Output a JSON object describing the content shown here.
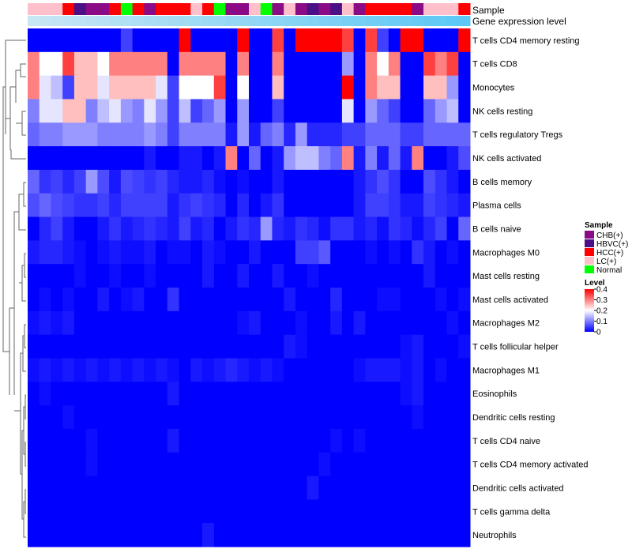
{
  "chart_data": {
    "type": "heatmap",
    "title": "",
    "annotation_rows": [
      {
        "label": "Sample"
      },
      {
        "label": "Gene expression level"
      }
    ],
    "sample_groups": [
      "LC(+)",
      "LC(+)",
      "LC(+)",
      "HCC(+)",
      "HBVC(+)",
      "CHB(+)",
      "CHB(+)",
      "HCC(+)",
      "Normal",
      "HCC(+)",
      "CHB(+)",
      "HCC(+)",
      "HCC(+)",
      "HCC(+)",
      "LC(+)",
      "HCC(+)",
      "Normal",
      "CHB(+)",
      "CHB(+)",
      "LC(+)",
      "Normal",
      "CHB(+)",
      "LC(+)",
      "CHB(+)",
      "HBVC(+)",
      "CHB(+)",
      "HBVC(+)",
      "LC(+)",
      "CHB(+)",
      "HCC(+)",
      "HCC(+)",
      "HCC(+)",
      "HCC(+)",
      "CHB(+)",
      "LC(+)",
      "LC(+)",
      "LC(+)",
      "HCC(+)"
    ],
    "rows": [
      "T cells CD4 memory resting",
      "T cells CD8",
      "Monocytes",
      "NK cells resting",
      "T cells regulatory  Tregs",
      "NK cells activated",
      "B cells memory",
      "Plasma cells",
      "B cells naive",
      "Macrophages M0",
      "Mast cells resting",
      "Mast cells activated",
      "Macrophages M2",
      "T cells follicular helper",
      "Macrophages M1",
      "Eosinophils",
      "Dendritic cells resting",
      "T cells CD4 naive",
      "T cells CD4 memory activated",
      "Dendritic cells activated",
      "T cells gamma delta",
      "Neutrophils"
    ],
    "values": [
      [
        0,
        0,
        0,
        0,
        0,
        0,
        0,
        0,
        0.05,
        0,
        0,
        0,
        0,
        0.4,
        0,
        0,
        0,
        0,
        0.4,
        0,
        0,
        0.35,
        0,
        0.4,
        0.4,
        0.4,
        0.4,
        0.35,
        0,
        0.35,
        0.05,
        0,
        0.4,
        0.4,
        0,
        0,
        0,
        0.4
      ],
      [
        0.3,
        0.2,
        0.2,
        0.35,
        0.25,
        0.25,
        0.2,
        0.3,
        0.3,
        0.3,
        0.3,
        0.3,
        0,
        0.3,
        0.3,
        0.3,
        0.3,
        0,
        0.3,
        0,
        0,
        0.3,
        0,
        0,
        0,
        0,
        0,
        0.12,
        0,
        0.3,
        0.2,
        0.3,
        0,
        0,
        0.35,
        0.3,
        0.35,
        0
      ],
      [
        0.3,
        0.18,
        0.15,
        0.05,
        0.25,
        0.25,
        0.18,
        0.25,
        0.25,
        0.25,
        0.25,
        0.18,
        0.05,
        0.2,
        0.2,
        0.2,
        0.35,
        0,
        0.2,
        0,
        0,
        0.25,
        0,
        0,
        0,
        0,
        0,
        0.4,
        0,
        0.3,
        0.25,
        0.25,
        0,
        0,
        0.25,
        0.25,
        0.12,
        0
      ],
      [
        0.1,
        0.18,
        0.18,
        0.25,
        0.25,
        0.1,
        0.15,
        0.18,
        0.12,
        0.1,
        0.18,
        0.12,
        0.05,
        0.15,
        0.05,
        0.08,
        0.12,
        0,
        0.12,
        0,
        0,
        0.05,
        0,
        0,
        0,
        0,
        0,
        0.18,
        0,
        0.12,
        0.08,
        0.05,
        0,
        0,
        0.08,
        0.12,
        0.15,
        0
      ],
      [
        0.08,
        0.1,
        0.1,
        0.12,
        0.12,
        0.12,
        0.1,
        0.1,
        0.1,
        0.1,
        0.12,
        0.1,
        0.05,
        0.1,
        0.1,
        0.1,
        0.1,
        0.02,
        0.12,
        0.02,
        0.08,
        0.1,
        0.03,
        0.12,
        0.03,
        0.03,
        0.03,
        0.05,
        0.05,
        0.08,
        0.08,
        0.08,
        0.05,
        0.05,
        0.08,
        0.08,
        0.08,
        0.08
      ],
      [
        0,
        0,
        0,
        0,
        0,
        0,
        0,
        0,
        0,
        0,
        0.02,
        0,
        0,
        0.02,
        0.02,
        0,
        0.02,
        0.3,
        0,
        0.08,
        0,
        0.02,
        0.12,
        0.15,
        0.15,
        0.1,
        0.08,
        0.3,
        0.02,
        0.1,
        0.02,
        0.08,
        0.02,
        0.3,
        0,
        0,
        0.02,
        0.06
      ],
      [
        0.08,
        0.04,
        0.05,
        0.03,
        0.05,
        0.12,
        0.06,
        0.02,
        0.06,
        0.05,
        0.04,
        0.05,
        0.03,
        0.02,
        0.02,
        0.03,
        0.01,
        0,
        0.01,
        0,
        0,
        0.02,
        0,
        0,
        0,
        0,
        0,
        0,
        0.02,
        0.04,
        0.06,
        0.04,
        0,
        0,
        0.06,
        0.04,
        0.02,
        0
      ],
      [
        0.06,
        0.08,
        0.06,
        0.05,
        0.04,
        0.04,
        0.05,
        0.03,
        0.05,
        0.05,
        0.05,
        0.05,
        0.02,
        0.04,
        0.05,
        0.04,
        0.03,
        0,
        0.03,
        0,
        0.02,
        0.04,
        0,
        0,
        0,
        0,
        0,
        0,
        0.02,
        0.05,
        0.05,
        0.04,
        0.02,
        0.02,
        0.05,
        0.04,
        0.03,
        0.02
      ],
      [
        0,
        0.03,
        0.05,
        0.02,
        0,
        0,
        0.02,
        0.04,
        0.02,
        0.03,
        0.04,
        0.03,
        0.02,
        0.05,
        0.02,
        0.03,
        0,
        0.02,
        0.04,
        0.03,
        0.12,
        0.03,
        0.02,
        0.04,
        0.03,
        0.01,
        0.04,
        0.04,
        0.02,
        0.03,
        0.01,
        0.04,
        0.03,
        0.01,
        0.03,
        0.05,
        0,
        0.08
      ],
      [
        0.02,
        0.03,
        0.03,
        0.02,
        0.01,
        0,
        0.01,
        0.02,
        0.01,
        0.01,
        0.02,
        0,
        0.01,
        0.01,
        0,
        0.02,
        0.01,
        0,
        0,
        0.02,
        0,
        0,
        0,
        0.05,
        0.05,
        0.07,
        0,
        0,
        0,
        0.01,
        0,
        0.01,
        0,
        0.04,
        0.02,
        0,
        0.01,
        0
      ],
      [
        0,
        0,
        0,
        0,
        0.01,
        0,
        0,
        0.01,
        0,
        0,
        0.01,
        0,
        0,
        0,
        0,
        0.02,
        0,
        0,
        0.02,
        0,
        0,
        0.02,
        0,
        0,
        0.01,
        0,
        0,
        0,
        0,
        0,
        0,
        0,
        0,
        0,
        0.02,
        0,
        0,
        0
      ],
      [
        0,
        0.01,
        0,
        0.01,
        0,
        0,
        0.02,
        0,
        0.01,
        0.02,
        0,
        0,
        0.04,
        0,
        0,
        0,
        0,
        0,
        0,
        0,
        0,
        0,
        0.02,
        0,
        0,
        0,
        0.03,
        0,
        0,
        0,
        0.01,
        0.01,
        0,
        0,
        0,
        0.01,
        0,
        0.01
      ],
      [
        0.01,
        0.02,
        0.01,
        0.02,
        0,
        0,
        0,
        0,
        0,
        0,
        0,
        0,
        0,
        0,
        0,
        0,
        0,
        0,
        0.01,
        0.02,
        0,
        0,
        0,
        0.01,
        0,
        0,
        0.02,
        0,
        0.02,
        0,
        0,
        0,
        0,
        0,
        0,
        0,
        0.01,
        0
      ],
      [
        0,
        0,
        0,
        0,
        0,
        0,
        0,
        0,
        0,
        0,
        0,
        0,
        0,
        0,
        0,
        0,
        0,
        0,
        0,
        0,
        0,
        0,
        0.02,
        0.01,
        0,
        0,
        0,
        0,
        0,
        0,
        0,
        0,
        0.01,
        0.02,
        0,
        0,
        0,
        0.01
      ],
      [
        0.01,
        0.02,
        0.01,
        0.02,
        0.01,
        0.02,
        0.01,
        0.02,
        0.01,
        0.02,
        0.01,
        0.02,
        0.01,
        0,
        0.02,
        0.01,
        0.02,
        0.03,
        0.02,
        0.01,
        0.02,
        0.01,
        0,
        0,
        0,
        0,
        0,
        0,
        0.01,
        0.02,
        0.02,
        0.02,
        0.01,
        0.02,
        0,
        0.01,
        0,
        0
      ],
      [
        0,
        0.01,
        0,
        0,
        0,
        0,
        0,
        0,
        0,
        0,
        0,
        0,
        0.02,
        0,
        0,
        0,
        0,
        0,
        0,
        0,
        0,
        0,
        0,
        0,
        0,
        0,
        0,
        0,
        0,
        0,
        0,
        0,
        0.01,
        0.02,
        0,
        0,
        0,
        0
      ],
      [
        0,
        0,
        0,
        0.01,
        0,
        0,
        0,
        0,
        0,
        0,
        0,
        0,
        0,
        0,
        0,
        0,
        0,
        0,
        0,
        0,
        0,
        0,
        0,
        0,
        0,
        0,
        0,
        0,
        0,
        0,
        0,
        0,
        0,
        0.01,
        0,
        0,
        0,
        0
      ],
      [
        0,
        0,
        0,
        0,
        0,
        0.01,
        0,
        0,
        0,
        0,
        0,
        0,
        0.02,
        0,
        0,
        0,
        0,
        0,
        0,
        0,
        0,
        0,
        0,
        0,
        0,
        0,
        0.01,
        0,
        0.01,
        0,
        0,
        0,
        0,
        0,
        0,
        0,
        0,
        0
      ],
      [
        0,
        0,
        0,
        0,
        0,
        0.01,
        0,
        0,
        0,
        0,
        0,
        0,
        0,
        0,
        0,
        0,
        0,
        0,
        0,
        0,
        0,
        0,
        0,
        0,
        0,
        0.01,
        0,
        0,
        0,
        0,
        0,
        0,
        0,
        0,
        0,
        0,
        0,
        0
      ],
      [
        0,
        0,
        0,
        0,
        0,
        0,
        0,
        0,
        0,
        0,
        0,
        0,
        0,
        0,
        0,
        0,
        0,
        0,
        0,
        0,
        0,
        0,
        0,
        0,
        0.02,
        0,
        0,
        0,
        0,
        0,
        0,
        0,
        0,
        0,
        0,
        0,
        0,
        0
      ],
      [
        0,
        0,
        0,
        0,
        0,
        0,
        0,
        0,
        0,
        0,
        0,
        0,
        0,
        0,
        0,
        0,
        0,
        0,
        0,
        0,
        0,
        0,
        0,
        0,
        0,
        0,
        0,
        0,
        0,
        0,
        0,
        0,
        0,
        0,
        0,
        0,
        0,
        0
      ],
      [
        0,
        0,
        0,
        0,
        0,
        0,
        0,
        0,
        0,
        0,
        0,
        0,
        0,
        0,
        0,
        0.02,
        0,
        0,
        0,
        0,
        0,
        0,
        0,
        0,
        0,
        0,
        0,
        0,
        0,
        0,
        0,
        0,
        0,
        0,
        0,
        0,
        0,
        0
      ]
    ],
    "legend_sample": {
      "title": "Sample",
      "entries": [
        {
          "label": "CHB(+)",
          "color": "#8B0A85"
        },
        {
          "label": "HBVC(+)",
          "color": "#4B0F86"
        },
        {
          "label": "HCC(+)",
          "color": "#FF0000"
        },
        {
          "label": "LC(+)",
          "color": "#FFC0CB"
        },
        {
          "label": "Normal",
          "color": "#00FF00"
        }
      ]
    },
    "legend_level": {
      "title": "Level",
      "ticks": [
        "0.4",
        "0.3",
        "0.2",
        "0.1",
        "0"
      ],
      "min": 0,
      "max": 0.4
    },
    "colors": {
      "low": "#0000FF",
      "mid": "#FFFFFF",
      "high": "#FF0000",
      "gene_expression_bar": "#5BC8F5",
      "gene_expression_bar_light": "#C9E6F4"
    }
  }
}
